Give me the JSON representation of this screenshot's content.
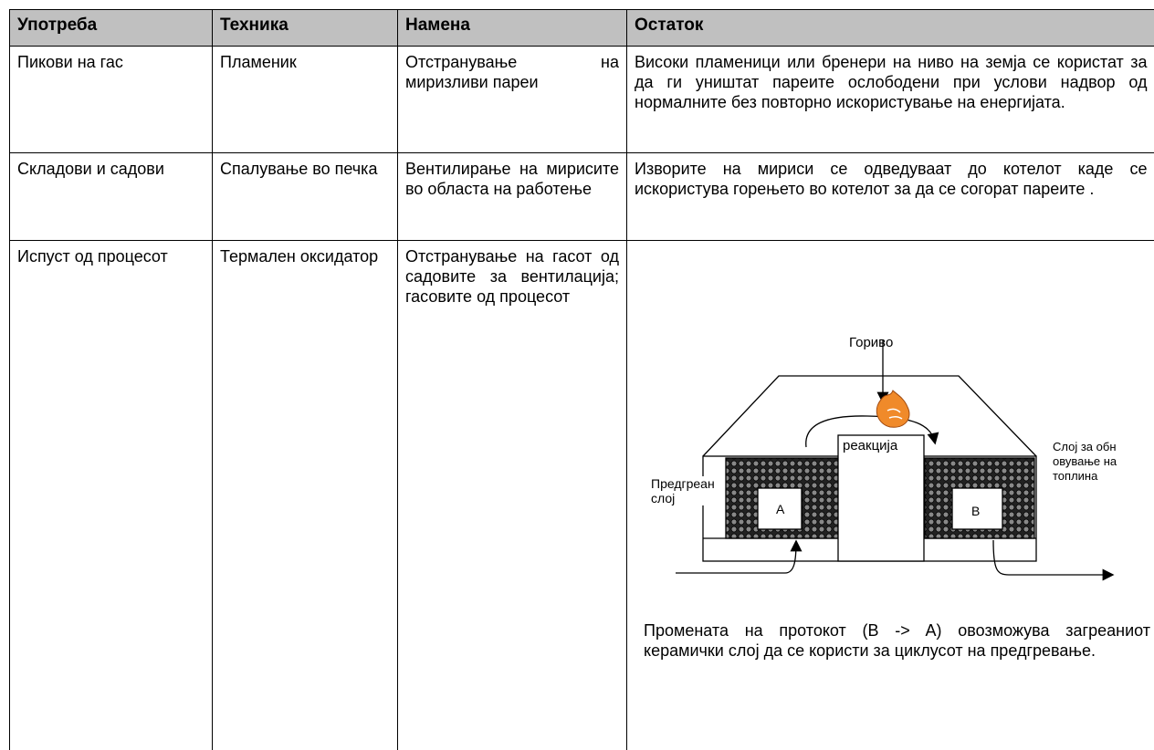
{
  "table": {
    "header": [
      "Употреба",
      "Техника",
      "Намена",
      "Остаток"
    ],
    "rows": [
      [
        "Пикови на гас",
        "Пламеник",
        "Отстранување на миризливи пареи",
        "Високи пламеници или бренери на ниво на земја се користат за да ги уништат пареите ослободени при услови надвор од нормалните без повторно искористување на енергијата."
      ],
      [
        "Складови и садови",
        "Спалување во печка",
        "Вентилирање на мирисите во областа на работење",
        "Изворите на мириси се одведуваат до котелот каде се искористува горењето во котелот за да се согорат пареите ."
      ],
      [
        "Испуст од процесот",
        "Термален оксидатор",
        "Отстранување на гасот од садовите за вентилација; гасовите од процесот",
        {
          "diagram": {
            "fuel": "Гориво",
            "reaction": "реакција",
            "preheat_layer": "Предгреан слој",
            "recovery_layer": "Слој за обновување на топлина",
            "box_a": "A",
            "box_b": "B"
          },
          "caption": "Промената на протокот (B -> A) овозможува загреаниот керамички слој да се користи за циклусот на предгревање."
        }
      ]
    ]
  }
}
